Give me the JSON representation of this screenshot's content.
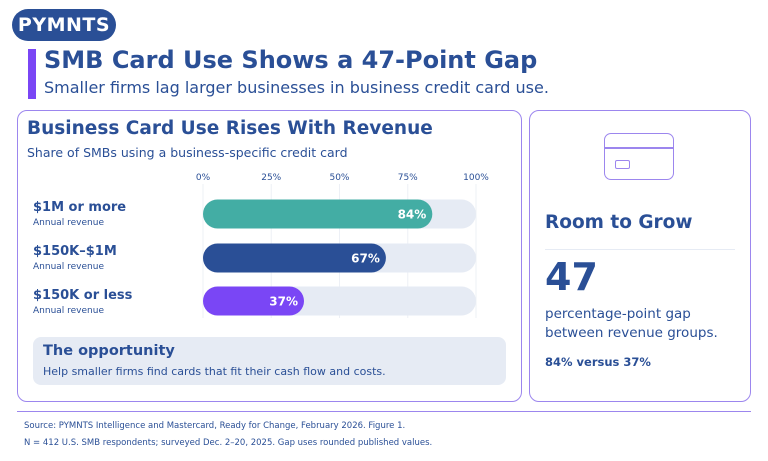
{
  "brand": {
    "logo": "PYMNTS"
  },
  "header": {
    "headline": "SMB Card Use Shows a 47-Point Gap",
    "subhead": "Smaller firms lag larger businesses in business credit card use."
  },
  "chart_data": {
    "type": "bar",
    "orientation": "horizontal",
    "title": "Business Card Use Rises With Revenue",
    "subtitle": "Share of SMBs using a business-specific credit card",
    "categories": [
      "$1M or more",
      "$150K–$1M",
      "$150K or less"
    ],
    "category_sublabel": "Annual revenue",
    "values": [
      84,
      67,
      37
    ],
    "value_labels": [
      "84%",
      "67%",
      "37%"
    ],
    "bar_colors": [
      "#43ada4",
      "#2a4f96",
      "#7a46f5"
    ],
    "track_color": "#e6ebf4",
    "xlim": [
      0,
      100
    ],
    "ticks": [
      0,
      25,
      50,
      75,
      100
    ],
    "tick_labels": [
      "0%",
      "25%",
      "50%",
      "75%",
      "100%"
    ],
    "grid": true
  },
  "opportunity": {
    "title": "The opportunity",
    "text": "Help smaller firms find cards that fit their cash flow and costs."
  },
  "side_panel": {
    "icon": "credit-card-icon",
    "title": "Room to Grow",
    "big_number": "47",
    "description": "percentage-point gap between revenue groups.",
    "comparison": "84% versus 37%"
  },
  "footer": {
    "source": "Source: PYMNTS Intelligence and Mastercard, Ready for Change, February 2026. Figure 1.",
    "note": "N = 412 U.S. SMB respondents; surveyed Dec. 2–20, 2025. Gap uses rounded published values."
  },
  "colors": {
    "navy": "#2a4f96",
    "purple": "#7a46f5",
    "teal": "#43ada4",
    "light": "#e6ebf4",
    "border": "#9c86ee"
  }
}
